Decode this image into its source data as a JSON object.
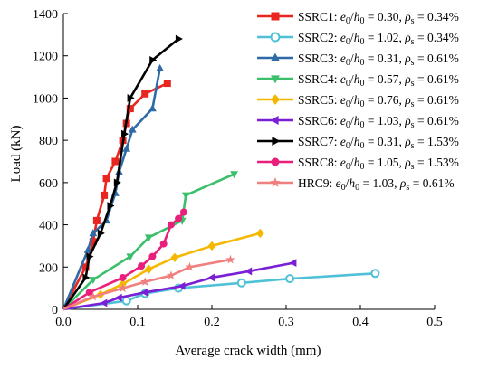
{
  "chart_data": {
    "type": "line",
    "title": "",
    "xlabel": "Average crack width (mm)",
    "ylabel": "Load (kN)",
    "xlim": [
      0,
      0.5
    ],
    "ylim": [
      0,
      1400
    ],
    "x_ticks": [
      "0.0",
      "0.1",
      "0.2",
      "0.3",
      "0.4",
      "0.5"
    ],
    "y_ticks": [
      "0",
      "200",
      "400",
      "600",
      "800",
      "1000",
      "1200",
      "1400"
    ],
    "grid": false,
    "legend_position": "top-right",
    "series": [
      {
        "name": "SSRC1",
        "e0_over_h0": "0.30",
        "rho_s": "0.34%",
        "color": "#e8251f",
        "marker": "square",
        "points": [
          [
            0,
            0
          ],
          [
            0.03,
            200
          ],
          [
            0.04,
            320
          ],
          [
            0.045,
            420
          ],
          [
            0.055,
            540
          ],
          [
            0.058,
            620
          ],
          [
            0.07,
            700
          ],
          [
            0.08,
            800
          ],
          [
            0.085,
            880
          ],
          [
            0.09,
            950
          ],
          [
            0.11,
            1020
          ],
          [
            0.14,
            1070
          ]
        ]
      },
      {
        "name": "SSRC2",
        "e0_over_h0": "1.02",
        "rho_s": "0.34%",
        "color": "#4ec1d6",
        "marker": "circle-open",
        "points": [
          [
            0,
            0
          ],
          [
            0.085,
            40
          ],
          [
            0.11,
            75
          ],
          [
            0.155,
            100
          ],
          [
            0.24,
            125
          ],
          [
            0.305,
            145
          ],
          [
            0.42,
            170
          ]
        ]
      },
      {
        "name": "SSRC3",
        "e0_over_h0": "0.31",
        "rho_s": "0.61%",
        "color": "#2e6aa6",
        "marker": "triangle-up",
        "points": [
          [
            0,
            0
          ],
          [
            0.033,
            280
          ],
          [
            0.04,
            360
          ],
          [
            0.058,
            420
          ],
          [
            0.07,
            550
          ],
          [
            0.075,
            650
          ],
          [
            0.085,
            760
          ],
          [
            0.093,
            850
          ],
          [
            0.12,
            950
          ],
          [
            0.13,
            1140
          ]
        ]
      },
      {
        "name": "SSRC4",
        "e0_over_h0": "0.57",
        "rho_s": "0.61%",
        "color": "#3cbf6a",
        "marker": "triangle-down",
        "points": [
          [
            0,
            0
          ],
          [
            0.04,
            140
          ],
          [
            0.09,
            250
          ],
          [
            0.115,
            340
          ],
          [
            0.16,
            420
          ],
          [
            0.165,
            540
          ],
          [
            0.23,
            640
          ]
        ]
      },
      {
        "name": "SSRC5",
        "e0_over_h0": "0.76",
        "rho_s": "0.61%",
        "color": "#f5b800",
        "marker": "diamond",
        "points": [
          [
            0,
            0
          ],
          [
            0.05,
            70
          ],
          [
            0.08,
            120
          ],
          [
            0.115,
            190
          ],
          [
            0.15,
            245
          ],
          [
            0.2,
            300
          ],
          [
            0.265,
            360
          ]
        ]
      },
      {
        "name": "SSRC6",
        "e0_over_h0": "1.03",
        "rho_s": "0.61%",
        "color": "#7a1fd6",
        "marker": "triangle-left",
        "points": [
          [
            0,
            0
          ],
          [
            0.055,
            30
          ],
          [
            0.075,
            55
          ],
          [
            0.11,
            80
          ],
          [
            0.16,
            110
          ],
          [
            0.2,
            150
          ],
          [
            0.25,
            180
          ],
          [
            0.31,
            220
          ]
        ]
      },
      {
        "name": "SSRC7",
        "e0_over_h0": "0.31",
        "rho_s": "1.53%",
        "color": "#000000",
        "marker": "triangle-right",
        "points": [
          [
            0,
            0
          ],
          [
            0.03,
            150
          ],
          [
            0.035,
            250
          ],
          [
            0.05,
            360
          ],
          [
            0.063,
            490
          ],
          [
            0.072,
            600
          ],
          [
            0.082,
            830
          ],
          [
            0.09,
            1000
          ],
          [
            0.12,
            1180
          ],
          [
            0.155,
            1280
          ]
        ]
      },
      {
        "name": "SSRC8",
        "e0_over_h0": "1.05",
        "rho_s": "1.53%",
        "color": "#ea1f7b",
        "marker": "circle",
        "points": [
          [
            0,
            0
          ],
          [
            0.035,
            80
          ],
          [
            0.08,
            150
          ],
          [
            0.105,
            205
          ],
          [
            0.12,
            250
          ],
          [
            0.135,
            310
          ],
          [
            0.145,
            400
          ],
          [
            0.155,
            430
          ],
          [
            0.162,
            460
          ]
        ]
      },
      {
        "name": "HRC9",
        "e0_over_h0": "1.03",
        "rho_s": "0.61%",
        "color": "#f08080",
        "marker": "star",
        "points": [
          [
            0,
            0
          ],
          [
            0.04,
            60
          ],
          [
            0.08,
            100
          ],
          [
            0.11,
            130
          ],
          [
            0.145,
            160
          ],
          [
            0.17,
            200
          ],
          [
            0.225,
            235
          ]
        ]
      }
    ]
  }
}
